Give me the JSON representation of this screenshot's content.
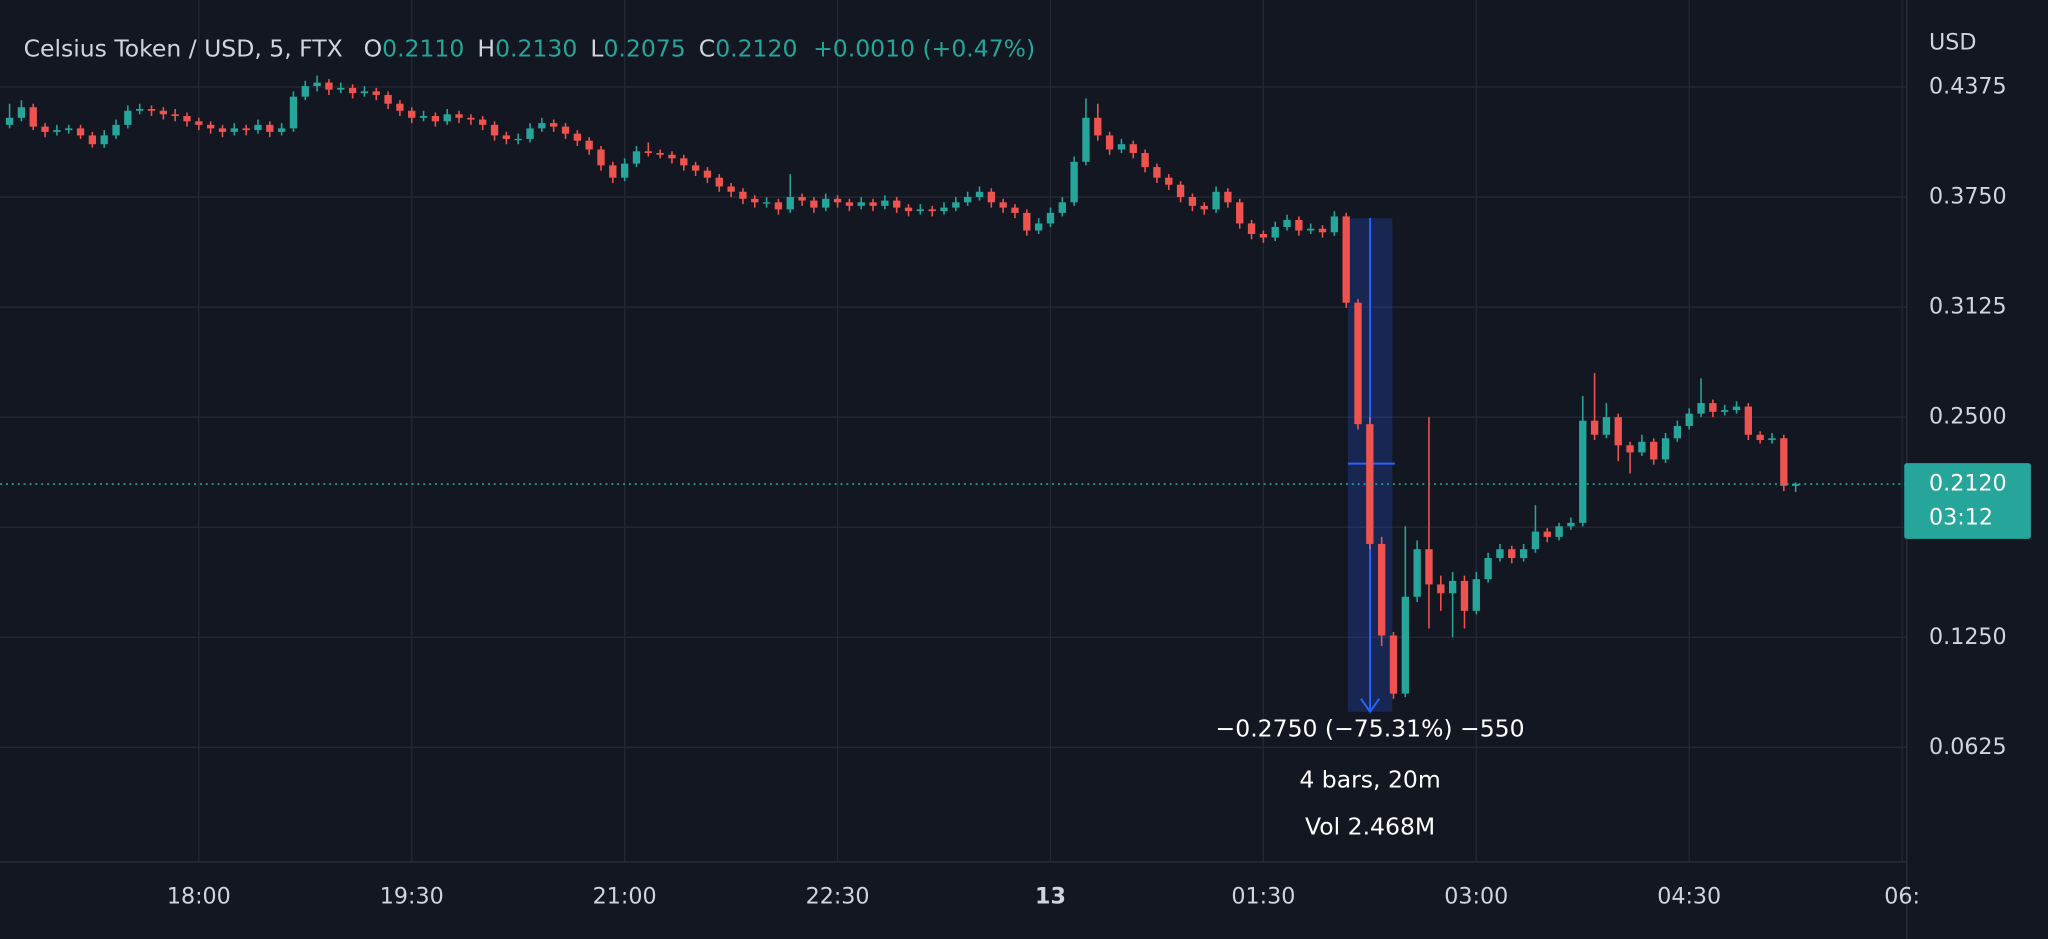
{
  "chart_data": {
    "type": "candlestick",
    "header": {
      "symbol": "Celsius Token / USD, 5, FTX",
      "fields": [
        {
          "key": "O",
          "value": "0.2110"
        },
        {
          "key": "H",
          "value": "0.2130"
        },
        {
          "key": "L",
          "value": "0.2075"
        },
        {
          "key": "C",
          "value": "0.2120"
        }
      ],
      "change": "+0.0010 (+0.47%)"
    },
    "y_axis_label": "USD",
    "last_price": {
      "value": 0.212,
      "label": "0.2120",
      "countdown": "03:12"
    },
    "annotations": [
      "−0.2750 (−75.31%) −550",
      "4 bars, 20m",
      "Vol 2.468M"
    ],
    "up_color": "#26a69a",
    "down_color": "#ef5350",
    "grid": true,
    "xlim": [
      996,
      1802
    ],
    "ylim": [
      -0.0026,
      0.4869
    ],
    "xticks": [
      {
        "value": 1080,
        "label": "18:00"
      },
      {
        "value": 1170,
        "label": "19:30"
      },
      {
        "value": 1260,
        "label": "21:00"
      },
      {
        "value": 1350,
        "label": "22:30"
      },
      {
        "value": 1440,
        "label": "13"
      },
      {
        "value": 1530,
        "label": "01:30"
      },
      {
        "value": 1620,
        "label": "03:00"
      },
      {
        "value": 1710,
        "label": "04:30"
      },
      {
        "value": 1800,
        "label": "06:"
      }
    ],
    "yticks": [
      {
        "value": 0.0625,
        "label": "0.0625"
      },
      {
        "value": 0.125,
        "label": "0.1250"
      },
      {
        "value": 0.1875,
        "label": null
      },
      {
        "value": 0.25,
        "label": "0.2500"
      },
      {
        "value": 0.3125,
        "label": "0.3125"
      },
      {
        "value": 0.375,
        "label": "0.3750"
      },
      {
        "value": 0.4375,
        "label": "0.4375"
      }
    ],
    "x": [
      1000,
      1005,
      1010,
      1015,
      1020,
      1025,
      1030,
      1035,
      1040,
      1045,
      1050,
      1055,
      1060,
      1065,
      1070,
      1075,
      1080,
      1085,
      1090,
      1095,
      1100,
      1105,
      1110,
      1115,
      1120,
      1125,
      1130,
      1135,
      1140,
      1145,
      1150,
      1155,
      1160,
      1165,
      1170,
      1175,
      1180,
      1185,
      1190,
      1195,
      1200,
      1205,
      1210,
      1215,
      1220,
      1225,
      1230,
      1235,
      1240,
      1245,
      1250,
      1255,
      1260,
      1265,
      1270,
      1275,
      1280,
      1285,
      1290,
      1295,
      1300,
      1305,
      1310,
      1315,
      1320,
      1325,
      1330,
      1335,
      1340,
      1345,
      1350,
      1355,
      1360,
      1365,
      1370,
      1375,
      1380,
      1385,
      1390,
      1395,
      1400,
      1405,
      1410,
      1415,
      1420,
      1425,
      1430,
      1435,
      1440,
      1445,
      1450,
      1455,
      1460,
      1465,
      1470,
      1475,
      1480,
      1485,
      1490,
      1495,
      1500,
      1505,
      1510,
      1515,
      1520,
      1525,
      1530,
      1535,
      1540,
      1545,
      1550,
      1555,
      1560,
      1565,
      1570,
      1575,
      1580,
      1585,
      1590,
      1595,
      1600,
      1605,
      1610,
      1615,
      1620,
      1625,
      1630,
      1635,
      1640,
      1645,
      1650,
      1655,
      1660,
      1665,
      1670,
      1675,
      1680,
      1685,
      1690,
      1695,
      1700,
      1705,
      1710,
      1715,
      1720,
      1725,
      1730,
      1735,
      1740,
      1745,
      1750,
      1755
    ],
    "ohlc": [
      [
        0.416,
        0.428,
        0.414,
        0.42
      ],
      [
        0.42,
        0.43,
        0.418,
        0.426
      ],
      [
        0.426,
        0.428,
        0.413,
        0.415
      ],
      [
        0.415,
        0.417,
        0.409,
        0.412
      ],
      [
        0.412,
        0.416,
        0.41,
        0.413
      ],
      [
        0.413,
        0.416,
        0.411,
        0.414
      ],
      [
        0.414,
        0.416,
        0.408,
        0.41
      ],
      [
        0.41,
        0.412,
        0.403,
        0.405
      ],
      [
        0.405,
        0.413,
        0.403,
        0.41
      ],
      [
        0.41,
        0.419,
        0.408,
        0.416
      ],
      [
        0.416,
        0.427,
        0.414,
        0.424
      ],
      [
        0.424,
        0.428,
        0.422,
        0.425
      ],
      [
        0.425,
        0.427,
        0.421,
        0.424
      ],
      [
        0.424,
        0.426,
        0.419,
        0.422
      ],
      [
        0.422,
        0.425,
        0.418,
        0.421
      ],
      [
        0.421,
        0.423,
        0.415,
        0.418
      ],
      [
        0.418,
        0.42,
        0.413,
        0.416
      ],
      [
        0.416,
        0.418,
        0.411,
        0.414
      ],
      [
        0.414,
        0.416,
        0.409,
        0.412
      ],
      [
        0.412,
        0.417,
        0.41,
        0.414
      ],
      [
        0.414,
        0.416,
        0.41,
        0.413
      ],
      [
        0.413,
        0.419,
        0.411,
        0.416
      ],
      [
        0.416,
        0.418,
        0.409,
        0.412
      ],
      [
        0.412,
        0.417,
        0.41,
        0.414
      ],
      [
        0.414,
        0.435,
        0.412,
        0.432
      ],
      [
        0.432,
        0.441,
        0.43,
        0.438
      ],
      [
        0.438,
        0.444,
        0.435,
        0.44
      ],
      [
        0.44,
        0.442,
        0.433,
        0.436
      ],
      [
        0.436,
        0.44,
        0.434,
        0.437
      ],
      [
        0.437,
        0.439,
        0.431,
        0.434
      ],
      [
        0.434,
        0.438,
        0.432,
        0.435
      ],
      [
        0.435,
        0.437,
        0.43,
        0.433
      ],
      [
        0.433,
        0.435,
        0.425,
        0.428
      ],
      [
        0.428,
        0.43,
        0.421,
        0.424
      ],
      [
        0.424,
        0.426,
        0.417,
        0.42
      ],
      [
        0.42,
        0.424,
        0.418,
        0.421
      ],
      [
        0.421,
        0.423,
        0.415,
        0.418
      ],
      [
        0.418,
        0.425,
        0.416,
        0.422
      ],
      [
        0.422,
        0.424,
        0.417,
        0.42
      ],
      [
        0.42,
        0.422,
        0.416,
        0.419
      ],
      [
        0.419,
        0.421,
        0.413,
        0.416
      ],
      [
        0.416,
        0.418,
        0.407,
        0.41
      ],
      [
        0.41,
        0.412,
        0.405,
        0.408
      ],
      [
        0.408,
        0.411,
        0.405,
        0.408
      ],
      [
        0.408,
        0.417,
        0.406,
        0.414
      ],
      [
        0.414,
        0.42,
        0.412,
        0.417
      ],
      [
        0.417,
        0.419,
        0.412,
        0.415
      ],
      [
        0.415,
        0.417,
        0.408,
        0.411
      ],
      [
        0.411,
        0.413,
        0.404,
        0.407
      ],
      [
        0.407,
        0.409,
        0.399,
        0.402
      ],
      [
        0.402,
        0.404,
        0.39,
        0.393
      ],
      [
        0.393,
        0.395,
        0.383,
        0.386
      ],
      [
        0.386,
        0.397,
        0.384,
        0.394
      ],
      [
        0.394,
        0.404,
        0.392,
        0.401
      ],
      [
        0.401,
        0.406,
        0.398,
        0.4
      ],
      [
        0.4,
        0.402,
        0.397,
        0.399
      ],
      [
        0.399,
        0.401,
        0.394,
        0.397
      ],
      [
        0.397,
        0.399,
        0.39,
        0.393
      ],
      [
        0.393,
        0.395,
        0.387,
        0.39
      ],
      [
        0.39,
        0.392,
        0.383,
        0.386
      ],
      [
        0.386,
        0.388,
        0.378,
        0.381
      ],
      [
        0.381,
        0.383,
        0.375,
        0.378
      ],
      [
        0.378,
        0.38,
        0.371,
        0.374
      ],
      [
        0.374,
        0.376,
        0.369,
        0.372
      ],
      [
        0.372,
        0.375,
        0.369,
        0.372
      ],
      [
        0.372,
        0.374,
        0.365,
        0.368
      ],
      [
        0.368,
        0.388,
        0.366,
        0.375
      ],
      [
        0.375,
        0.377,
        0.37,
        0.373
      ],
      [
        0.373,
        0.375,
        0.366,
        0.369
      ],
      [
        0.369,
        0.377,
        0.367,
        0.374
      ],
      [
        0.374,
        0.376,
        0.369,
        0.372
      ],
      [
        0.372,
        0.374,
        0.367,
        0.37
      ],
      [
        0.37,
        0.375,
        0.368,
        0.372
      ],
      [
        0.372,
        0.374,
        0.367,
        0.37
      ],
      [
        0.37,
        0.376,
        0.368,
        0.373
      ],
      [
        0.373,
        0.375,
        0.366,
        0.369
      ],
      [
        0.369,
        0.371,
        0.364,
        0.367
      ],
      [
        0.367,
        0.371,
        0.365,
        0.368
      ],
      [
        0.368,
        0.37,
        0.364,
        0.367
      ],
      [
        0.367,
        0.372,
        0.365,
        0.369
      ],
      [
        0.369,
        0.375,
        0.367,
        0.372
      ],
      [
        0.372,
        0.378,
        0.37,
        0.375
      ],
      [
        0.375,
        0.381,
        0.373,
        0.378
      ],
      [
        0.378,
        0.38,
        0.369,
        0.372
      ],
      [
        0.372,
        0.374,
        0.366,
        0.369
      ],
      [
        0.369,
        0.371,
        0.363,
        0.366
      ],
      [
        0.366,
        0.368,
        0.353,
        0.356
      ],
      [
        0.356,
        0.363,
        0.354,
        0.36
      ],
      [
        0.36,
        0.369,
        0.358,
        0.366
      ],
      [
        0.366,
        0.375,
        0.364,
        0.372
      ],
      [
        0.372,
        0.398,
        0.37,
        0.395
      ],
      [
        0.395,
        0.431,
        0.393,
        0.42
      ],
      [
        0.42,
        0.428,
        0.407,
        0.41
      ],
      [
        0.41,
        0.412,
        0.399,
        0.402
      ],
      [
        0.402,
        0.408,
        0.4,
        0.405
      ],
      [
        0.405,
        0.407,
        0.397,
        0.4
      ],
      [
        0.4,
        0.402,
        0.389,
        0.392
      ],
      [
        0.392,
        0.394,
        0.383,
        0.386
      ],
      [
        0.386,
        0.388,
        0.379,
        0.382
      ],
      [
        0.382,
        0.384,
        0.372,
        0.375
      ],
      [
        0.375,
        0.377,
        0.367,
        0.37
      ],
      [
        0.37,
        0.372,
        0.365,
        0.368
      ],
      [
        0.368,
        0.381,
        0.366,
        0.378
      ],
      [
        0.378,
        0.38,
        0.369,
        0.372
      ],
      [
        0.372,
        0.374,
        0.357,
        0.36
      ],
      [
        0.36,
        0.362,
        0.351,
        0.354
      ],
      [
        0.354,
        0.356,
        0.349,
        0.352
      ],
      [
        0.352,
        0.361,
        0.35,
        0.358
      ],
      [
        0.358,
        0.365,
        0.356,
        0.362
      ],
      [
        0.362,
        0.364,
        0.353,
        0.356
      ],
      [
        0.356,
        0.36,
        0.354,
        0.357
      ],
      [
        0.357,
        0.359,
        0.352,
        0.355
      ],
      [
        0.355,
        0.367,
        0.353,
        0.364
      ],
      [
        0.364,
        0.366,
        0.312,
        0.315
      ],
      [
        0.315,
        0.317,
        0.243,
        0.246
      ],
      [
        0.246,
        0.25,
        0.175,
        0.178
      ],
      [
        0.178,
        0.182,
        0.12,
        0.126
      ],
      [
        0.126,
        0.128,
        0.09,
        0.093
      ],
      [
        0.093,
        0.188,
        0.091,
        0.148
      ],
      [
        0.148,
        0.18,
        0.145,
        0.175
      ],
      [
        0.175,
        0.25,
        0.13,
        0.155
      ],
      [
        0.155,
        0.16,
        0.14,
        0.15
      ],
      [
        0.15,
        0.162,
        0.125,
        0.157
      ],
      [
        0.157,
        0.16,
        0.13,
        0.14
      ],
      [
        0.14,
        0.162,
        0.138,
        0.158
      ],
      [
        0.158,
        0.173,
        0.156,
        0.17
      ],
      [
        0.17,
        0.178,
        0.168,
        0.175
      ],
      [
        0.175,
        0.177,
        0.167,
        0.17
      ],
      [
        0.17,
        0.178,
        0.168,
        0.175
      ],
      [
        0.175,
        0.2,
        0.173,
        0.185
      ],
      [
        0.185,
        0.187,
        0.179,
        0.182
      ],
      [
        0.182,
        0.19,
        0.18,
        0.188
      ],
      [
        0.188,
        0.193,
        0.186,
        0.19
      ],
      [
        0.19,
        0.262,
        0.188,
        0.248
      ],
      [
        0.248,
        0.275,
        0.237,
        0.24
      ],
      [
        0.24,
        0.258,
        0.238,
        0.25
      ],
      [
        0.25,
        0.252,
        0.225,
        0.234
      ],
      [
        0.234,
        0.236,
        0.218,
        0.23
      ],
      [
        0.23,
        0.24,
        0.228,
        0.236
      ],
      [
        0.236,
        0.238,
        0.223,
        0.226
      ],
      [
        0.226,
        0.241,
        0.224,
        0.238
      ],
      [
        0.238,
        0.248,
        0.236,
        0.245
      ],
      [
        0.245,
        0.255,
        0.243,
        0.252
      ],
      [
        0.252,
        0.272,
        0.25,
        0.258
      ],
      [
        0.258,
        0.26,
        0.25,
        0.253
      ],
      [
        0.253,
        0.257,
        0.251,
        0.254
      ],
      [
        0.254,
        0.259,
        0.252,
        0.256
      ],
      [
        0.256,
        0.258,
        0.237,
        0.24
      ],
      [
        0.24,
        0.242,
        0.235,
        0.237
      ],
      [
        0.237,
        0.241,
        0.235,
        0.238
      ],
      [
        0.238,
        0.24,
        0.208,
        0.211
      ],
      [
        0.211,
        0.213,
        0.2075,
        0.212
      ]
    ]
  }
}
